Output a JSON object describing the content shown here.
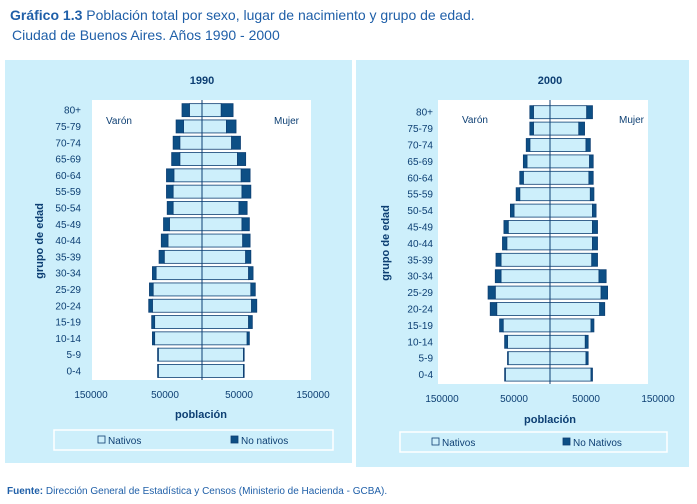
{
  "title": {
    "label": "Gráfico 1.3",
    "text": "Población total por sexo, lugar de nacimiento y grupo de edad.",
    "subtitle": "Ciudad de Buenos Aires. Años 1990 - 2000"
  },
  "source": {
    "label": "Fuente:",
    "text": "Dirección General de Estadística y Censos (Ministerio de Hacienda - GCBA)."
  },
  "colors": {
    "panel_bg": "#cdeffb",
    "nativos": "#cdeffb",
    "no_nativos": "#0d4f85",
    "text": "#1f5fa8"
  },
  "chart_data": [
    {
      "type": "bar",
      "orientation": "population-pyramid",
      "title": "1990",
      "ylabel": "grupo de edad",
      "xlabel": "población",
      "left_label": "Varón",
      "right_label": "Mujer",
      "xlim": [
        -150000,
        150000
      ],
      "x_tick_labels": [
        "150000",
        "50000",
        "50000",
        "150000"
      ],
      "x_tick_values": [
        -150000,
        -50000,
        50000,
        150000
      ],
      "categories": [
        "80+",
        "75-79",
        "70-74",
        "65-69",
        "60-64",
        "55-59",
        "50-54",
        "45-49",
        "40-44",
        "35-39",
        "30-34",
        "25-29",
        "20-24",
        "15-19",
        "10-14",
        "5-9",
        "0-4"
      ],
      "series": [
        {
          "name": "Nativos",
          "side": "Varón",
          "values": [
            17000,
            25000,
            30000,
            30000,
            38000,
            39000,
            39000,
            44000,
            46000,
            51000,
            62000,
            66000,
            67000,
            64000,
            64000,
            59000,
            59000
          ]
        },
        {
          "name": "No nativos",
          "side": "Varón",
          "values": [
            10000,
            10000,
            9000,
            11000,
            10000,
            9000,
            8000,
            8000,
            9000,
            7000,
            5000,
            5000,
            5000,
            4000,
            3000,
            1000,
            1000
          ]
        },
        {
          "name": "Nativos",
          "side": "Mujer",
          "values": [
            26000,
            33000,
            40000,
            48000,
            53000,
            54000,
            50000,
            54000,
            55000,
            59000,
            63000,
            66000,
            67000,
            63000,
            61000,
            56000,
            56000
          ]
        },
        {
          "name": "No nativos",
          "side": "Mujer",
          "values": [
            16000,
            13000,
            12000,
            11000,
            12000,
            12000,
            11000,
            10000,
            10000,
            7000,
            6000,
            6000,
            7000,
            5000,
            3000,
            1000,
            1000
          ]
        }
      ],
      "legend": {
        "position": "bottom",
        "items": [
          "Nativos",
          "No nativos"
        ]
      }
    },
    {
      "type": "bar",
      "orientation": "population-pyramid",
      "title": "2000",
      "ylabel": "grupo de edad",
      "xlabel": "población",
      "left_label": "Varón",
      "right_label": "Mujer",
      "xlim": [
        -150000,
        150000
      ],
      "x_tick_labels": [
        "150000",
        "50000",
        "50000",
        "150000"
      ],
      "x_tick_values": [
        -150000,
        -50000,
        50000,
        150000
      ],
      "categories": [
        "80+",
        "75-79",
        "70-74",
        "65-69",
        "60-64",
        "55-59",
        "50-54",
        "45-49",
        "40-44",
        "35-39",
        "30-34",
        "25-29",
        "20-24",
        "15-19",
        "10-14",
        "5-9",
        "0-4"
      ],
      "series": [
        {
          "name": "Nativos",
          "side": "Varón",
          "values": [
            23000,
            23000,
            28000,
            32000,
            37000,
            42000,
            50000,
            58000,
            60000,
            68000,
            68000,
            76000,
            74000,
            65000,
            59000,
            58000,
            62000
          ]
        },
        {
          "name": "No nativos",
          "side": "Varón",
          "values": [
            5000,
            5000,
            5000,
            5000,
            5000,
            5000,
            5000,
            6000,
            6000,
            7000,
            8000,
            10000,
            9000,
            5000,
            4000,
            1000,
            1000
          ]
        },
        {
          "name": "Nativos",
          "side": "Mujer",
          "values": [
            51000,
            40000,
            50000,
            55000,
            54000,
            56000,
            59000,
            59000,
            59000,
            58000,
            68000,
            71000,
            69000,
            57000,
            49000,
            50000,
            57000
          ]
        },
        {
          "name": "No nativos",
          "side": "Mujer",
          "values": [
            8000,
            8000,
            6000,
            5000,
            6000,
            5000,
            5000,
            7000,
            7000,
            8000,
            10000,
            9000,
            7000,
            4000,
            4000,
            3000,
            2000
          ]
        }
      ],
      "legend": {
        "position": "bottom",
        "items": [
          "Nativos",
          "No Nativos"
        ]
      }
    }
  ]
}
